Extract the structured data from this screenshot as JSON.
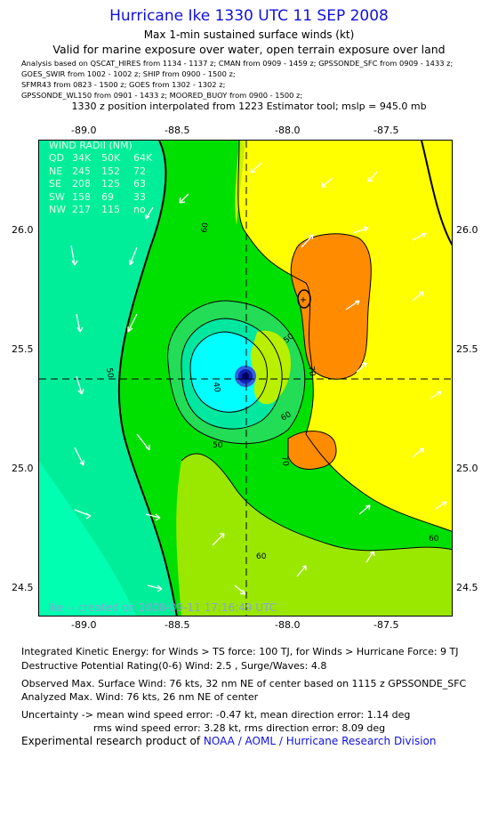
{
  "header": {
    "title": "Hurricane Ike 1330 UTC 11 SEP 2008",
    "subtitle1": "Max 1-min sustained surface winds (kt)",
    "subtitle2": "Valid for marine exposure over water, open terrain exposure over land"
  },
  "sources": [
    "Analysis based on  QSCAT_HIRES from 1134 - 1137 z;  CMAN from 0909 - 1459 z;  GPSSONDE_SFC from 0909 - 1433 z;",
    "GOES_SWIR from 1002 - 1002 z;  SHIP from 0900 - 1500 z;",
    "SFMR43 from 0823 - 1500 z;  GOES from 1302 - 1302 z;",
    "GPSSONDE_WL150 from 0901 - 1433 z;  MOORED_BUOY from 0900 - 1500 z;"
  ],
  "position_line": "1330 z position interpolated from 1223 Estimator tool; mslp = 945.0 mb",
  "axes": {
    "lon_labels": [
      "-89.0",
      "-88.5",
      "-88.0",
      "-87.5"
    ],
    "lat_labels": [
      "26.0",
      "25.5",
      "25.0",
      "24.5"
    ]
  },
  "wind_radii": {
    "title": "WIND RADII (NM)",
    "header": [
      "QD",
      "34K",
      "50K",
      "64K"
    ],
    "rows": [
      [
        "NE",
        "245",
        "152",
        "72"
      ],
      [
        "SE",
        "208",
        "125",
        "63"
      ],
      [
        "SW",
        "158",
        "69",
        "33"
      ],
      [
        "NW",
        "217",
        "115",
        "no"
      ]
    ]
  },
  "contour_labels": [
    "60",
    "50",
    "40",
    "50",
    "60",
    "70",
    "50",
    "60",
    "70",
    "60",
    "60"
  ],
  "credit": "Ike -- created on 2008-09-11 17:16:49 UTC",
  "stats": {
    "ike": "Integrated Kinetic Energy:  for Winds > TS force: 100 TJ,  for Winds > Hurricane Force: 9 TJ",
    "dpr": "Destructive Potential Rating(0-6)   Wind: 2.5 , Surge/Waves: 4.8",
    "obs_max": "Observed Max. Surface Wind: 76 kts, 32 nm NE of center based on 1115 z GPSSONDE_SFC",
    "an_max": "Analyzed Max. Wind: 76 kts, 26 nm NE of center",
    "unc1": "Uncertainty -> mean wind speed error:  -0.47 kt,    mean direction error: 1.14 deg",
    "unc2": "rms wind speed error: 3.28 kt,   rms direction error: 8.09 deg"
  },
  "footer": {
    "prefix": "Experimental research product of ",
    "org": "NOAA / AOML / Hurricane Research Division"
  },
  "colors": {
    "title": "#1010e0",
    "green": "#00e000",
    "light_green": "#66e600",
    "yellow_green": "#c8f000",
    "yellow": "#ffff00",
    "orange": "#ff8c00",
    "teal": "#00ee9a",
    "cyan": "#00ffff",
    "blue_core": "#0000c0"
  }
}
